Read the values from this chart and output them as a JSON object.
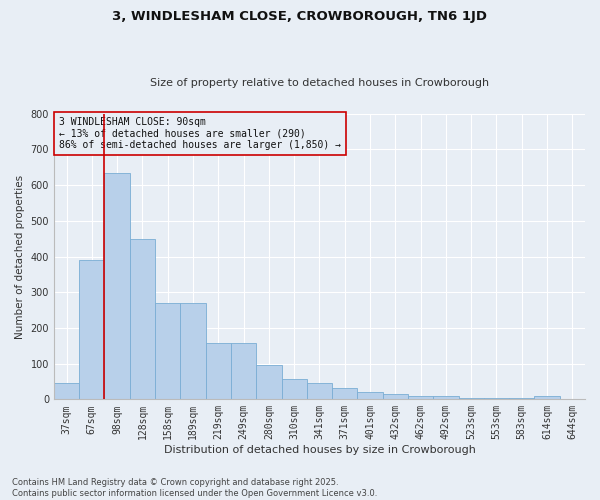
{
  "title": "3, WINDLESHAM CLOSE, CROWBOROUGH, TN6 1JD",
  "subtitle": "Size of property relative to detached houses in Crowborough",
  "xlabel": "Distribution of detached houses by size in Crowborough",
  "ylabel": "Number of detached properties",
  "categories": [
    "37sqm",
    "67sqm",
    "98sqm",
    "128sqm",
    "158sqm",
    "189sqm",
    "219sqm",
    "249sqm",
    "280sqm",
    "310sqm",
    "341sqm",
    "371sqm",
    "401sqm",
    "432sqm",
    "462sqm",
    "492sqm",
    "523sqm",
    "553sqm",
    "583sqm",
    "614sqm",
    "644sqm"
  ],
  "values": [
    47,
    390,
    635,
    450,
    270,
    270,
    157,
    157,
    97,
    57,
    45,
    32,
    20,
    15,
    10,
    8,
    5,
    4,
    3,
    8,
    2
  ],
  "bar_color": "#b8d0ea",
  "bar_edge_color": "#7aadd4",
  "bg_color": "#e8eef5",
  "grid_color": "#ffffff",
  "annotation_box_color": "#cc0000",
  "vline_color": "#cc0000",
  "annotation_title": "3 WINDLESHAM CLOSE: 90sqm",
  "annotation_line1": "← 13% of detached houses are smaller (290)",
  "annotation_line2": "86% of semi-detached houses are larger (1,850) →",
  "footer1": "Contains HM Land Registry data © Crown copyright and database right 2025.",
  "footer2": "Contains public sector information licensed under the Open Government Licence v3.0.",
  "ylim": [
    0,
    800
  ],
  "yticks": [
    0,
    100,
    200,
    300,
    400,
    500,
    600,
    700,
    800
  ],
  "title_fontsize": 9.5,
  "subtitle_fontsize": 8,
  "tick_fontsize": 7,
  "ylabel_fontsize": 7.5,
  "xlabel_fontsize": 8,
  "footer_fontsize": 6,
  "ann_fontsize": 7
}
